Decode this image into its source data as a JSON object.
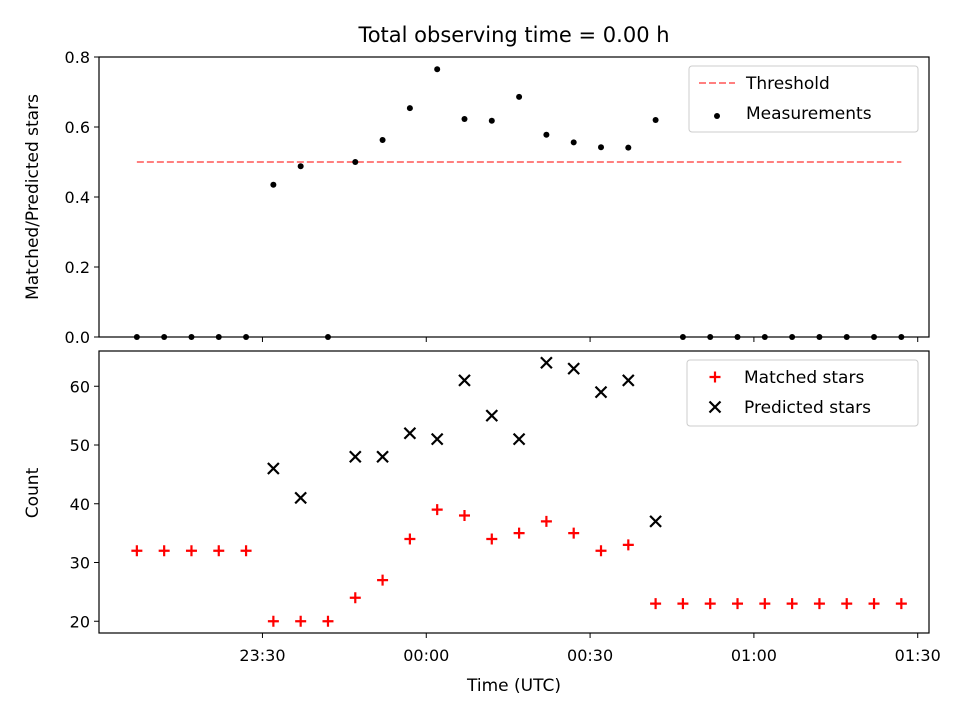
{
  "figure": {
    "title": "Total observing time = 0.00 h",
    "xlabel": "Time (UTC)",
    "xticks": [
      "23:30",
      "00:00",
      "00:30",
      "01:00",
      "01:30"
    ]
  },
  "chart_data": [
    {
      "type": "scatter",
      "ylabel": "Matched/Predicted stars",
      "xlim": [
        "23:00:04",
        "01:32:04"
      ],
      "ylim": [
        0,
        0.8
      ],
      "yticks": [
        "0.0",
        "0.2",
        "0.4",
        "0.6",
        "0.8"
      ],
      "grid": false,
      "legend_position": "top-right",
      "threshold": {
        "name": "Threshold",
        "value": 0.5,
        "x_start": "23:07",
        "x_end": "01:27",
        "color": "#ff7f7f",
        "style": "dashed"
      },
      "series": [
        {
          "name": "Measurements",
          "color": "#000000",
          "marker": "dot",
          "x": [
            "23:07",
            "23:12",
            "23:17",
            "23:22",
            "23:27",
            "23:32",
            "23:37",
            "23:42",
            "23:47",
            "23:52",
            "23:57",
            "00:02",
            "00:07",
            "00:12",
            "00:17",
            "00:22",
            "00:27",
            "00:32",
            "00:37",
            "00:42",
            "00:47",
            "00:52",
            "00:57",
            "01:02",
            "01:07",
            "01:12",
            "01:17",
            "01:22",
            "01:27"
          ],
          "y": [
            0,
            0,
            0,
            0,
            0,
            0.435,
            0.488,
            0,
            0.5,
            0.563,
            0.654,
            0.765,
            0.623,
            0.618,
            0.686,
            0.578,
            0.556,
            0.542,
            0.541,
            0.62,
            0,
            0,
            0,
            0,
            0,
            0,
            0,
            0,
            0
          ]
        }
      ]
    },
    {
      "type": "scatter",
      "ylabel": "Count",
      "xlim": [
        "23:00:04",
        "01:32:04"
      ],
      "ylim": [
        18,
        66
      ],
      "yticks": [
        "20",
        "30",
        "40",
        "50",
        "60"
      ],
      "grid": false,
      "legend_position": "top-right",
      "series": [
        {
          "name": "Matched stars",
          "color": "#ff0000",
          "marker": "plus",
          "x": [
            "23:07",
            "23:12",
            "23:17",
            "23:22",
            "23:27",
            "23:32",
            "23:37",
            "23:42",
            "23:47",
            "23:52",
            "23:57",
            "00:02",
            "00:07",
            "00:12",
            "00:17",
            "00:22",
            "00:27",
            "00:32",
            "00:37",
            "00:42",
            "00:47",
            "00:52",
            "00:57",
            "01:02",
            "01:07",
            "01:12",
            "01:17",
            "01:22",
            "01:27"
          ],
          "y": [
            32,
            32,
            32,
            32,
            32,
            20,
            20,
            20,
            24,
            27,
            34,
            39,
            38,
            34,
            35,
            37,
            35,
            32,
            33,
            23,
            23,
            23,
            23,
            23,
            23,
            23,
            23,
            23,
            23
          ]
        },
        {
          "name": "Predicted stars",
          "color": "#000000",
          "marker": "x",
          "x": [
            "23:32",
            "23:37",
            "23:47",
            "23:52",
            "23:57",
            "00:02",
            "00:07",
            "00:12",
            "00:17",
            "00:22",
            "00:27",
            "00:32",
            "00:37",
            "00:42"
          ],
          "y": [
            46,
            41,
            48,
            48,
            52,
            51,
            61,
            55,
            51,
            64,
            63,
            59,
            61,
            37
          ]
        }
      ]
    }
  ]
}
